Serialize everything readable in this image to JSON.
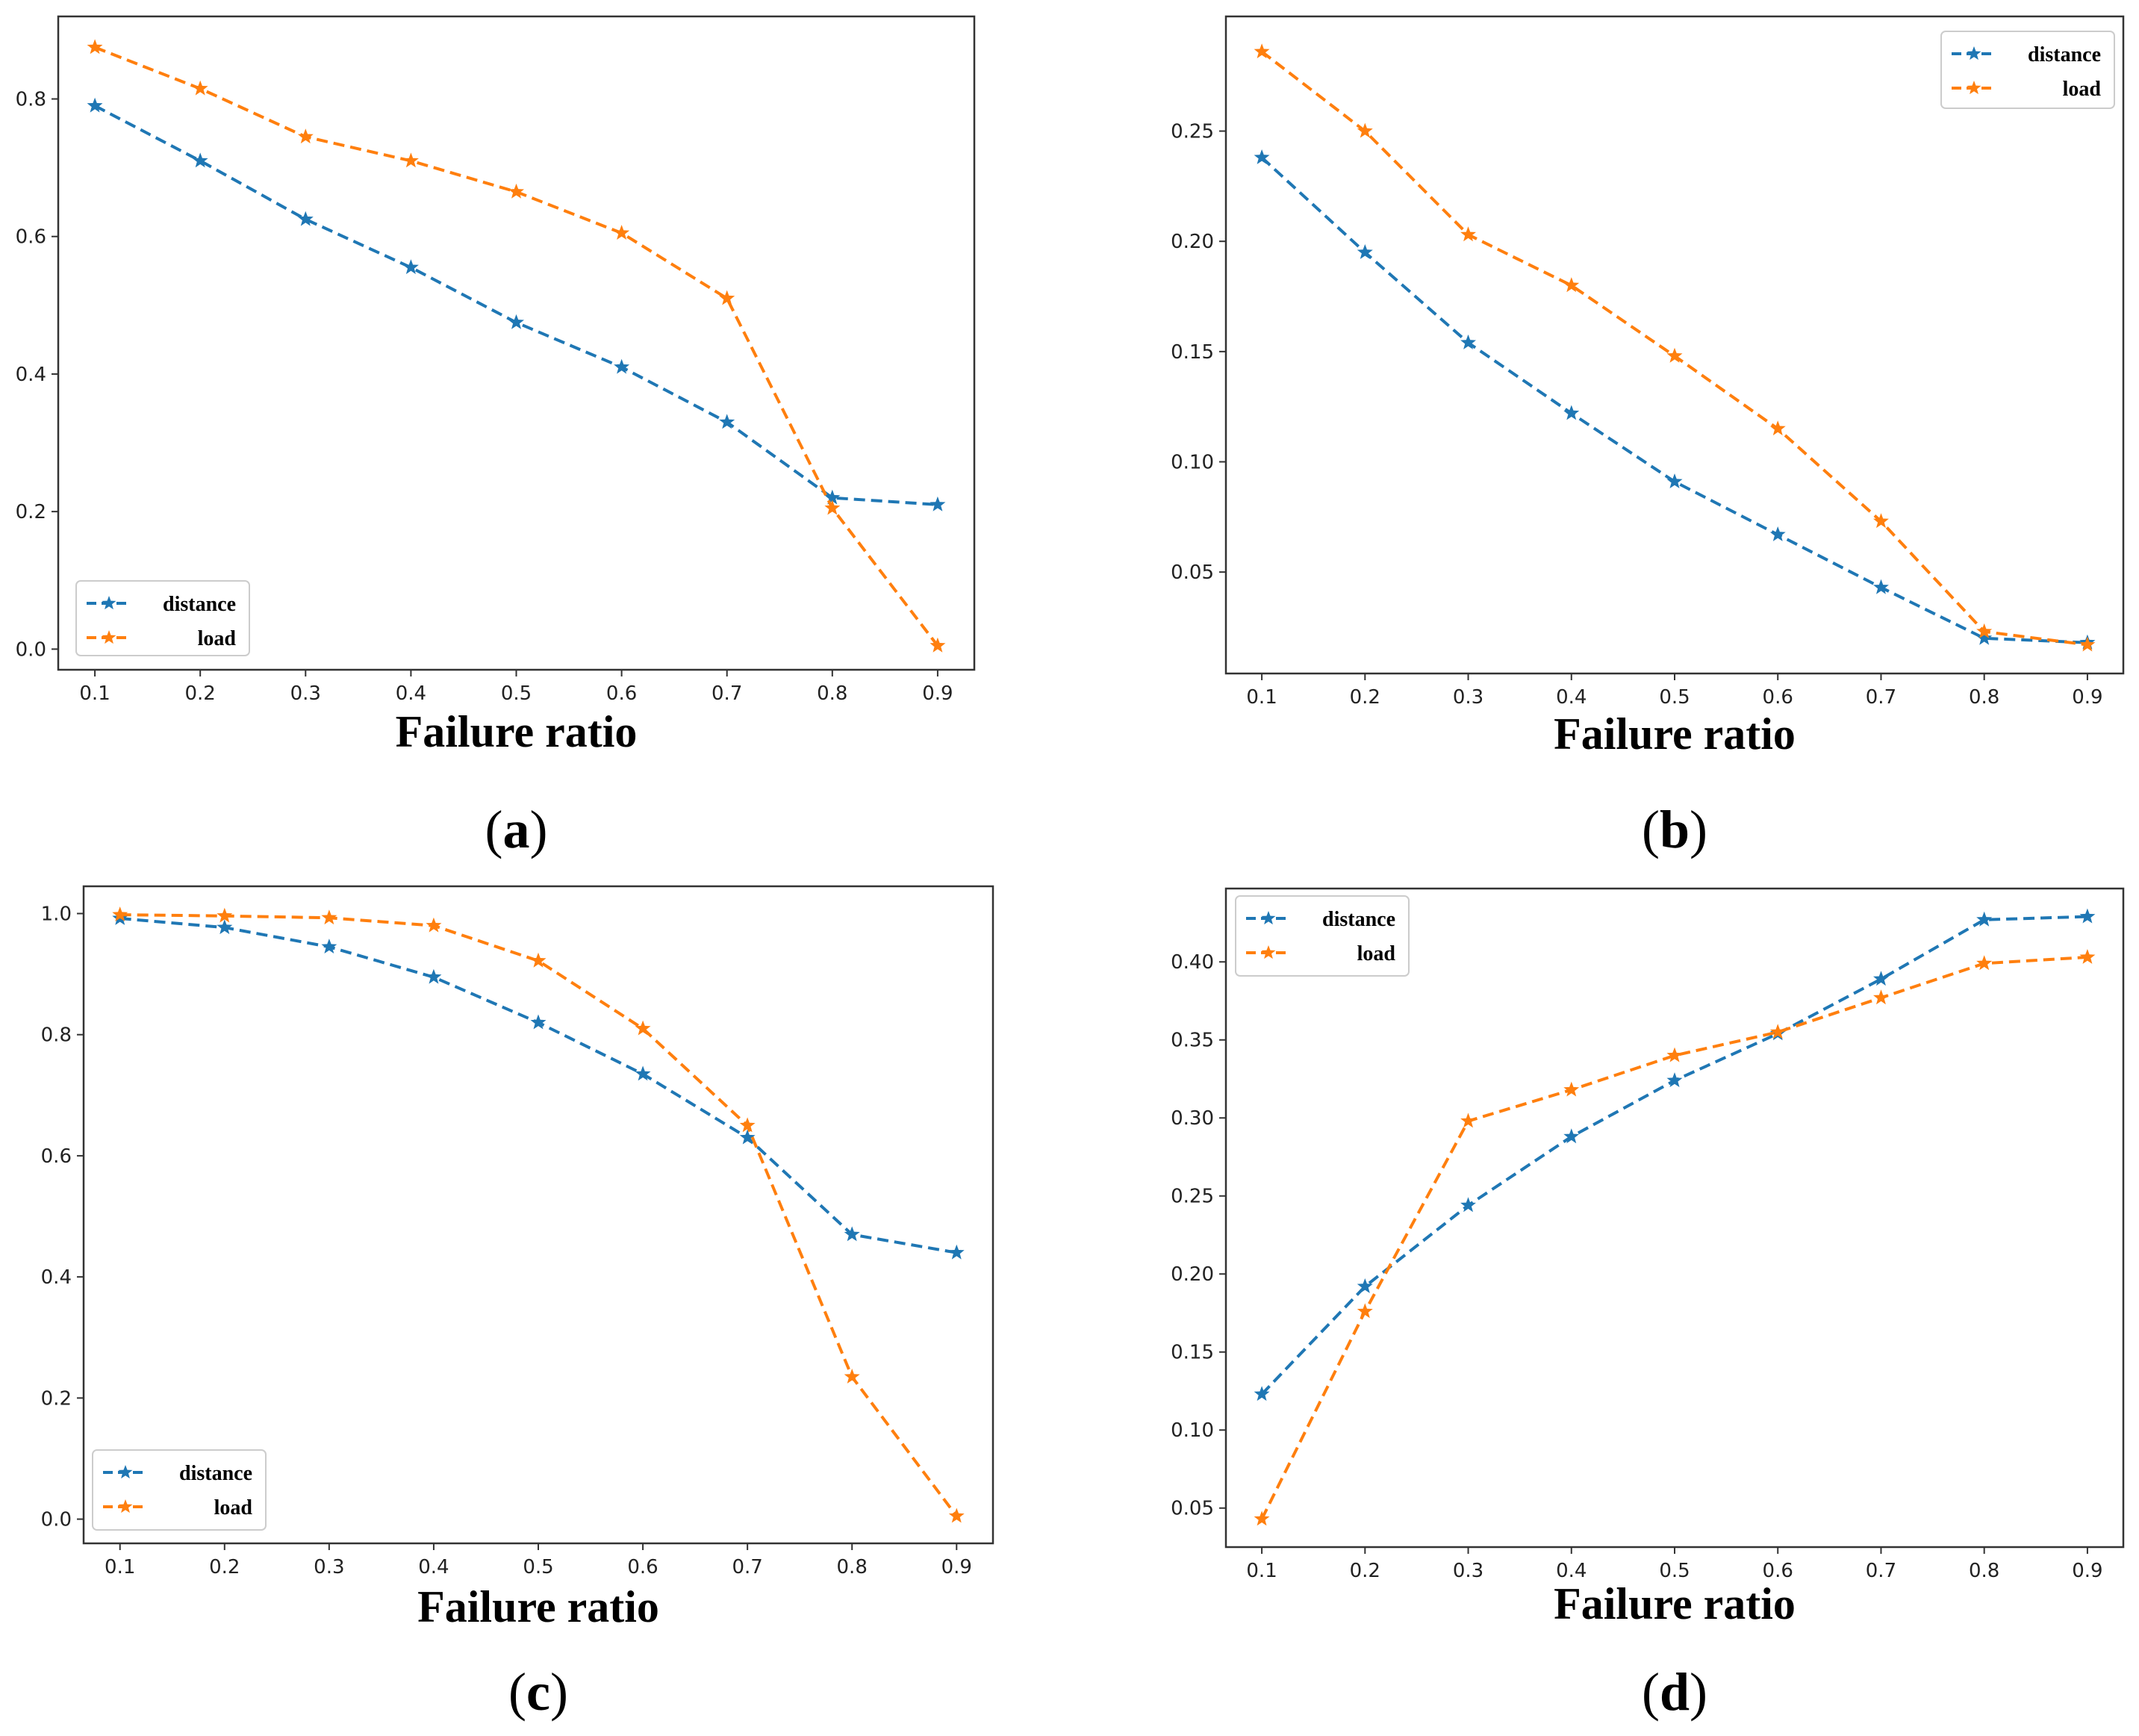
{
  "figure": {
    "panels": [
      {
        "caption_letter": "a",
        "legend_location": "lower-left",
        "chart_data": {
          "type": "line",
          "title": "",
          "xlabel": "Failure ratio",
          "ylabel": "",
          "x": [
            0.1,
            0.2,
            0.3,
            0.4,
            0.5,
            0.6,
            0.7,
            0.8,
            0.9
          ],
          "xticks": [
            "0.1",
            "0.2",
            "0.3",
            "0.4",
            "0.5",
            "0.6",
            "0.7",
            "0.8",
            "0.9"
          ],
          "yticks": [
            "0.0",
            "0.2",
            "0.4",
            "0.6",
            "0.8"
          ],
          "ylim": [
            -0.03,
            0.92
          ],
          "series": [
            {
              "name": "distance",
              "color": "#1f77b4",
              "values": [
                0.79,
                0.71,
                0.625,
                0.555,
                0.475,
                0.41,
                0.33,
                0.22,
                0.21
              ]
            },
            {
              "name": "load",
              "color": "#ff7f0e",
              "values": [
                0.875,
                0.815,
                0.745,
                0.71,
                0.665,
                0.605,
                0.51,
                0.205,
                0.005
              ]
            }
          ]
        }
      },
      {
        "caption_letter": "b",
        "legend_location": "upper-right",
        "chart_data": {
          "type": "line",
          "title": "",
          "xlabel": "Failure ratio",
          "ylabel": "",
          "x": [
            0.1,
            0.2,
            0.3,
            0.4,
            0.5,
            0.6,
            0.7,
            0.8,
            0.9
          ],
          "xticks": [
            "0.1",
            "0.2",
            "0.3",
            "0.4",
            "0.5",
            "0.6",
            "0.7",
            "0.8",
            "0.9"
          ],
          "yticks": [
            "0.05",
            "0.10",
            "0.15",
            "0.20",
            "0.25"
          ],
          "ylim": [
            0.004,
            0.302
          ],
          "series": [
            {
              "name": "distance",
              "color": "#1f77b4",
              "values": [
                0.238,
                0.195,
                0.154,
                0.122,
                0.091,
                0.067,
                0.043,
                0.02,
                0.018
              ]
            },
            {
              "name": "load",
              "color": "#ff7f0e",
              "values": [
                0.286,
                0.25,
                0.203,
                0.18,
                0.148,
                0.115,
                0.073,
                0.023,
                0.017
              ]
            }
          ]
        }
      },
      {
        "caption_letter": "c",
        "legend_location": "lower-left",
        "chart_data": {
          "type": "line",
          "title": "",
          "xlabel": "Failure ratio",
          "ylabel": "",
          "x": [
            0.1,
            0.2,
            0.3,
            0.4,
            0.5,
            0.6,
            0.7,
            0.8,
            0.9
          ],
          "xticks": [
            "0.1",
            "0.2",
            "0.3",
            "0.4",
            "0.5",
            "0.6",
            "0.7",
            "0.8",
            "0.9"
          ],
          "yticks": [
            "0.0",
            "0.2",
            "0.4",
            "0.6",
            "0.8",
            "1.0"
          ],
          "ylim": [
            -0.04,
            1.045
          ],
          "series": [
            {
              "name": "distance",
              "color": "#1f77b4",
              "values": [
                0.992,
                0.977,
                0.945,
                0.895,
                0.82,
                0.735,
                0.63,
                0.47,
                0.44
              ]
            },
            {
              "name": "load",
              "color": "#ff7f0e",
              "values": [
                0.998,
                0.996,
                0.993,
                0.98,
                0.922,
                0.81,
                0.65,
                0.235,
                0.005
              ]
            }
          ]
        }
      },
      {
        "caption_letter": "d",
        "legend_location": "upper-left",
        "chart_data": {
          "type": "line",
          "title": "",
          "xlabel": "Failure ratio",
          "ylabel": "",
          "x": [
            0.1,
            0.2,
            0.3,
            0.4,
            0.5,
            0.6,
            0.7,
            0.8,
            0.9
          ],
          "xticks": [
            "0.1",
            "0.2",
            "0.3",
            "0.4",
            "0.5",
            "0.6",
            "0.7",
            "0.8",
            "0.9"
          ],
          "yticks": [
            "0.05",
            "0.10",
            "0.15",
            "0.20",
            "0.25",
            "0.30",
            "0.35",
            "0.40"
          ],
          "ylim": [
            0.025,
            0.447
          ],
          "series": [
            {
              "name": "distance",
              "color": "#1f77b4",
              "values": [
                0.123,
                0.192,
                0.244,
                0.288,
                0.324,
                0.354,
                0.389,
                0.427,
                0.429
              ]
            },
            {
              "name": "load",
              "color": "#ff7f0e",
              "values": [
                0.043,
                0.176,
                0.298,
                0.318,
                0.34,
                0.355,
                0.377,
                0.399,
                0.403
              ]
            }
          ]
        }
      }
    ]
  }
}
